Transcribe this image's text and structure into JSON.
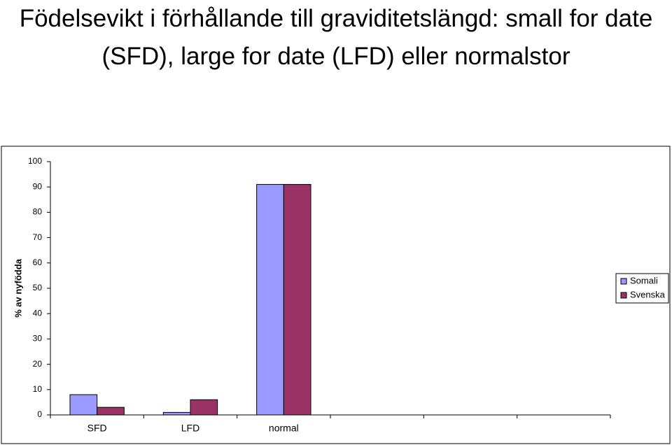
{
  "chart_data": {
    "type": "bar",
    "title": "Födelsevikt i förhållande till graviditetslängd: small for date (SFD), large for date (LFD) eller normalstor",
    "y_label": "% av nyfödda",
    "categories": [
      "SFD",
      "LFD",
      "normal",
      null,
      null,
      null
    ],
    "series": [
      {
        "name": "Somali",
        "color": "#9999ff",
        "values": [
          8,
          1,
          91,
          null,
          null,
          null
        ]
      },
      {
        "name": "Svenska",
        "color": "#993366",
        "values": [
          3,
          6,
          91,
          null,
          null,
          null
        ]
      }
    ],
    "ylim": [
      0,
      100
    ],
    "yticks": [
      0,
      10,
      20,
      30,
      40,
      50,
      60,
      70,
      80,
      90,
      100
    ],
    "grid": false,
    "legend": "right"
  }
}
